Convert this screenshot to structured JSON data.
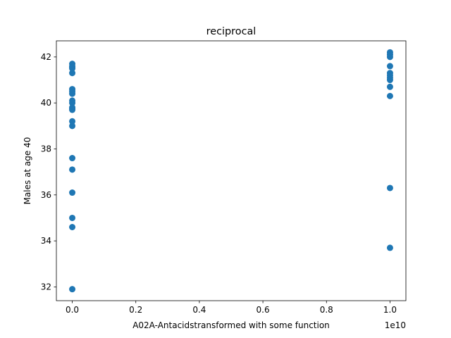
{
  "chart_data": {
    "type": "scatter",
    "title": "reciprocal",
    "xlabel": "A02A-Antacidstransformed with some function",
    "ylabel": "Males at age 40",
    "x_offset_text": "1e10",
    "xlim": [
      -0.5,
      10.5
    ],
    "ylim": [
      31.4,
      42.7
    ],
    "x_ticks": [
      0,
      2,
      4,
      6,
      8,
      10
    ],
    "x_tick_labels": [
      "0.0",
      "0.2",
      "0.4",
      "0.6",
      "0.8",
      "1.0"
    ],
    "y_ticks": [
      32,
      34,
      36,
      38,
      40,
      42
    ],
    "y_tick_labels": [
      "32",
      "34",
      "36",
      "38",
      "40",
      "42"
    ],
    "grid": false,
    "legend": "none",
    "marker_color": "#1f77b4",
    "series": [
      {
        "x": [
          0,
          0,
          0,
          0,
          0,
          0,
          0,
          0,
          0,
          0,
          0,
          0,
          0,
          0,
          0,
          0,
          0,
          0,
          0,
          0,
          0,
          10,
          10,
          10,
          10,
          10,
          10,
          10,
          10,
          10,
          10,
          10,
          10
        ],
        "y": [
          41.7,
          41.6,
          41.3,
          40.6,
          40.4,
          40.1,
          39.8,
          39.7,
          39.2,
          39.0,
          37.6,
          37.1,
          36.1,
          35.0,
          34.6,
          31.9,
          41.5,
          40.0,
          39.75,
          41.55,
          40.5,
          42.2,
          42.1,
          42.0,
          41.6,
          41.3,
          41.2,
          41.1,
          40.7,
          40.3,
          36.3,
          33.7,
          41.0
        ]
      }
    ]
  }
}
